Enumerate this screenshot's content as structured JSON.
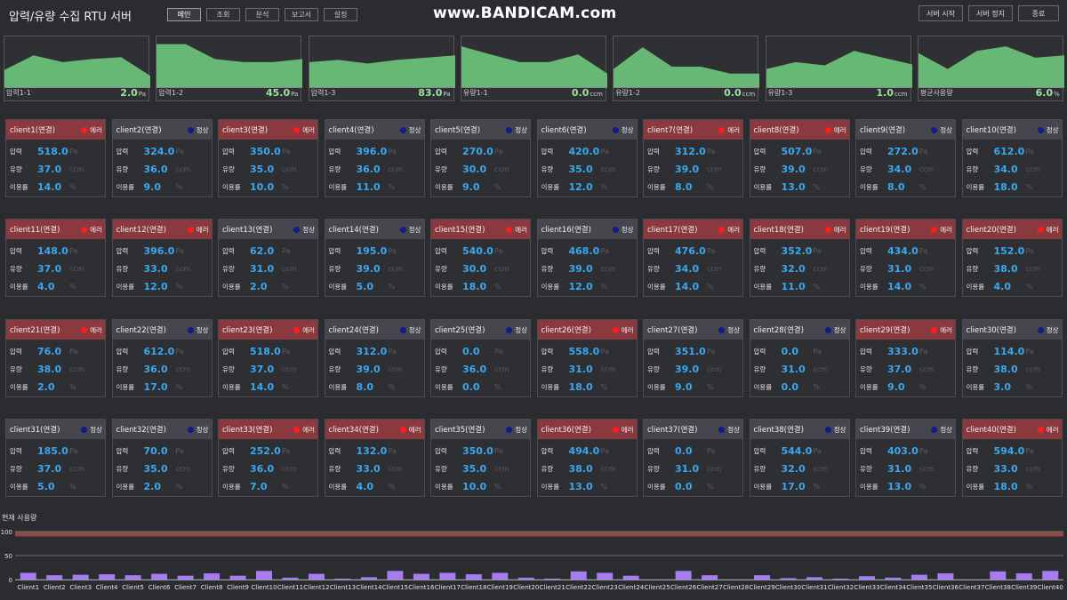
{
  "app": {
    "title": "압력/유량 수집 RTU 서버",
    "watermark": "www.BANDICAM.com"
  },
  "nav": [
    {
      "label": "메인",
      "active": true
    },
    {
      "label": "조회"
    },
    {
      "label": "분석"
    },
    {
      "label": "보고서"
    },
    {
      "label": "설정"
    }
  ],
  "actions": [
    {
      "label": "서버 시작"
    },
    {
      "label": "서버 정지"
    },
    {
      "label": "종료"
    }
  ],
  "trends": [
    {
      "label": "압력1-1",
      "value": "2.0",
      "unit": "Pa",
      "points": [
        0.38,
        0.7,
        0.55,
        0.62,
        0.66,
        0.25
      ]
    },
    {
      "label": "압력1-2",
      "value": "45.0",
      "unit": "Pa",
      "points": [
        0.95,
        0.95,
        0.62,
        0.55,
        0.55,
        0.62
      ]
    },
    {
      "label": "압력1-3",
      "value": "83.0",
      "unit": "Pa",
      "points": [
        0.55,
        0.6,
        0.52,
        0.6,
        0.65,
        0.7
      ]
    },
    {
      "label": "유량1-1",
      "value": "0.0",
      "unit": "ccm",
      "points": [
        0.9,
        0.72,
        0.55,
        0.55,
        0.72,
        0.3
      ]
    },
    {
      "label": "유량1-2",
      "value": "0.0",
      "unit": "ccm",
      "points": [
        0.4,
        0.88,
        0.45,
        0.45,
        0.3,
        0.3
      ]
    },
    {
      "label": "유량1-3",
      "value": "1.0",
      "unit": "ccm",
      "points": [
        0.4,
        0.55,
        0.48,
        0.8,
        0.65,
        0.5
      ]
    },
    {
      "label": "평균사용량",
      "value": "6.0",
      "unit": "%",
      "points": [
        0.75,
        0.4,
        0.8,
        0.9,
        0.65,
        0.7
      ]
    }
  ],
  "labels": {
    "pressure": "압력",
    "flow": "유량",
    "usage_rate": "이용률",
    "status_err": "에러",
    "status_ok": "정상",
    "usage_title": "현재 사용량",
    "unit_pa": "Pa",
    "unit_ccm": "ccm",
    "unit_pct": "%"
  },
  "clients": [
    {
      "name": "client1(연결)",
      "status": "err",
      "p": "518.0",
      "f": "37.0",
      "u": "14.0"
    },
    {
      "name": "client2(연결)",
      "status": "ok",
      "p": "324.0",
      "f": "36.0",
      "u": "9.0"
    },
    {
      "name": "client3(연결)",
      "status": "err",
      "p": "350.0",
      "f": "35.0",
      "u": "10.0"
    },
    {
      "name": "client4(연결)",
      "status": "ok",
      "p": "396.0",
      "f": "36.0",
      "u": "11.0"
    },
    {
      "name": "client5(연결)",
      "status": "ok",
      "p": "270.0",
      "f": "30.0",
      "u": "9.0"
    },
    {
      "name": "client6(연결)",
      "status": "ok",
      "p": "420.0",
      "f": "35.0",
      "u": "12.0"
    },
    {
      "name": "client7(연결)",
      "status": "err",
      "p": "312.0",
      "f": "39.0",
      "u": "8.0"
    },
    {
      "name": "client8(연결)",
      "status": "err",
      "p": "507.0",
      "f": "39.0",
      "u": "13.0"
    },
    {
      "name": "client9(연결)",
      "status": "ok",
      "p": "272.0",
      "f": "34.0",
      "u": "8.0"
    },
    {
      "name": "client10(연결)",
      "status": "ok",
      "p": "612.0",
      "f": "34.0",
      "u": "18.0"
    },
    {
      "name": "client11(연결)",
      "status": "err",
      "p": "148.0",
      "f": "37.0",
      "u": "4.0"
    },
    {
      "name": "client12(연결)",
      "status": "err",
      "p": "396.0",
      "f": "33.0",
      "u": "12.0"
    },
    {
      "name": "client13(연결)",
      "status": "ok",
      "p": "62.0",
      "f": "31.0",
      "u": "2.0"
    },
    {
      "name": "client14(연결)",
      "status": "ok",
      "p": "195.0",
      "f": "39.0",
      "u": "5.0"
    },
    {
      "name": "client15(연결)",
      "status": "err",
      "p": "540.0",
      "f": "30.0",
      "u": "18.0"
    },
    {
      "name": "client16(연결)",
      "status": "ok",
      "p": "468.0",
      "f": "39.0",
      "u": "12.0"
    },
    {
      "name": "client17(연결)",
      "status": "err",
      "p": "476.0",
      "f": "34.0",
      "u": "14.0"
    },
    {
      "name": "client18(연결)",
      "status": "err",
      "p": "352.0",
      "f": "32.0",
      "u": "11.0"
    },
    {
      "name": "client19(연결)",
      "status": "err",
      "p": "434.0",
      "f": "31.0",
      "u": "14.0"
    },
    {
      "name": "client20(연결)",
      "status": "err",
      "p": "152.0",
      "f": "38.0",
      "u": "4.0"
    },
    {
      "name": "client21(연결)",
      "status": "err",
      "p": "76.0",
      "f": "38.0",
      "u": "2.0"
    },
    {
      "name": "client22(연결)",
      "status": "ok",
      "p": "612.0",
      "f": "36.0",
      "u": "17.0"
    },
    {
      "name": "client23(연결)",
      "status": "err",
      "p": "518.0",
      "f": "37.0",
      "u": "14.0"
    },
    {
      "name": "client24(연결)",
      "status": "ok",
      "p": "312.0",
      "f": "39.0",
      "u": "8.0"
    },
    {
      "name": "client25(연결)",
      "status": "ok",
      "p": "0.0",
      "f": "36.0",
      "u": "0.0"
    },
    {
      "name": "client26(연결)",
      "status": "err",
      "p": "558.0",
      "f": "31.0",
      "u": "18.0"
    },
    {
      "name": "client27(연결)",
      "status": "ok",
      "p": "351.0",
      "f": "39.0",
      "u": "9.0"
    },
    {
      "name": "client28(연결)",
      "status": "ok",
      "p": "0.0",
      "f": "31.0",
      "u": "0.0"
    },
    {
      "name": "client29(연결)",
      "status": "err",
      "p": "333.0",
      "f": "37.0",
      "u": "9.0"
    },
    {
      "name": "client30(연결)",
      "status": "ok",
      "p": "114.0",
      "f": "38.0",
      "u": "3.0"
    },
    {
      "name": "client31(연결)",
      "status": "ok",
      "p": "185.0",
      "f": "37.0",
      "u": "5.0"
    },
    {
      "name": "client32(연결)",
      "status": "ok",
      "p": "70.0",
      "f": "35.0",
      "u": "2.0"
    },
    {
      "name": "client33(연결)",
      "status": "err",
      "p": "252.0",
      "f": "36.0",
      "u": "7.0"
    },
    {
      "name": "client34(연결)",
      "status": "err",
      "p": "132.0",
      "f": "33.0",
      "u": "4.0"
    },
    {
      "name": "client35(연결)",
      "status": "ok",
      "p": "350.0",
      "f": "35.0",
      "u": "10.0"
    },
    {
      "name": "client36(연결)",
      "status": "err",
      "p": "494.0",
      "f": "38.0",
      "u": "13.0"
    },
    {
      "name": "client37(연결)",
      "status": "ok",
      "p": "0.0",
      "f": "31.0",
      "u": "0.0"
    },
    {
      "name": "client38(연결)",
      "status": "ok",
      "p": "544.0",
      "f": "32.0",
      "u": "17.0"
    },
    {
      "name": "client39(연결)",
      "status": "ok",
      "p": "403.0",
      "f": "31.0",
      "u": "13.0"
    },
    {
      "name": "client40(연결)",
      "status": "err",
      "p": "594.0",
      "f": "33.0",
      "u": "18.0"
    }
  ],
  "chart_data": {
    "type": "bar",
    "title": "현재 사용량",
    "ylim": [
      0,
      100
    ],
    "yticks": [
      "100",
      "50",
      "0"
    ],
    "threshold": [
      90,
      100
    ],
    "categories": [
      "Client1",
      "Client2",
      "Client3",
      "Client4",
      "Client5",
      "Client6",
      "Client7",
      "Client8",
      "Client9",
      "Client10",
      "Client11",
      "Client12",
      "Client13",
      "Client14",
      "Client15",
      "Client16",
      "Client17",
      "Client18",
      "Client19",
      "Client20",
      "Client21",
      "Client22",
      "Client23",
      "Client24",
      "Client25",
      "Client26",
      "Client27",
      "Client28",
      "Client29",
      "Client30",
      "Client31",
      "Client32",
      "Client33",
      "Client34",
      "Client35",
      "Client36",
      "Client37",
      "Client38",
      "Client39",
      "Client40"
    ],
    "values": [
      14,
      9,
      10,
      11,
      9,
      12,
      8,
      13,
      8,
      18,
      4,
      12,
      2,
      5,
      18,
      12,
      14,
      11,
      14,
      4,
      2,
      17,
      14,
      8,
      0,
      18,
      9,
      0,
      9,
      3,
      5,
      2,
      7,
      4,
      10,
      13,
      0,
      17,
      13,
      18
    ],
    "colors": {
      "bar": "#a77cf0",
      "threshold": "#8f4a46"
    }
  }
}
